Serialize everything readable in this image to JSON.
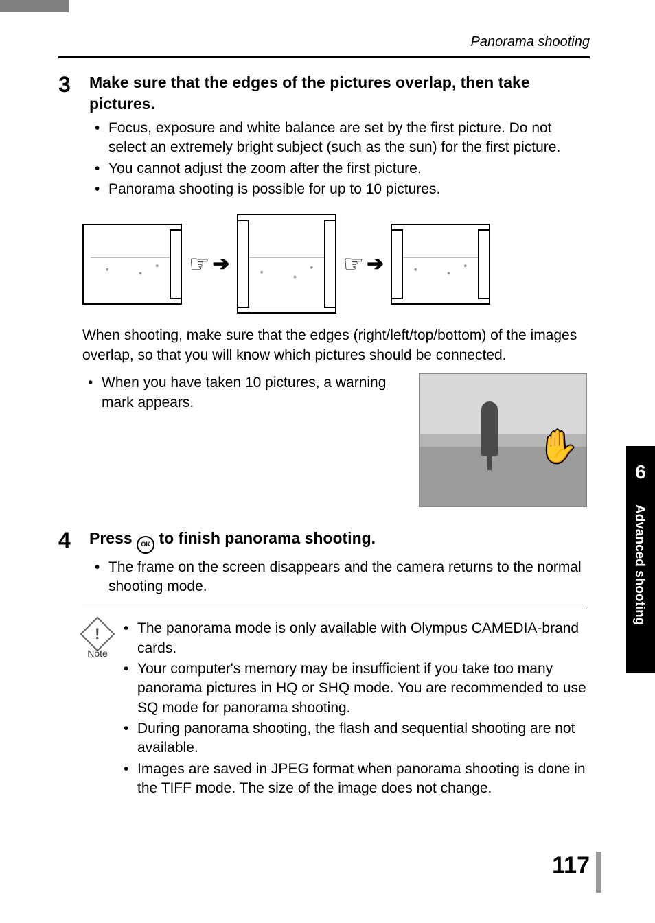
{
  "header": {
    "section_title": "Panorama shooting"
  },
  "step3": {
    "number": "3",
    "title": "Make sure that the edges of the pictures overlap, then take pictures.",
    "bullets": [
      "Focus, exposure and white balance are set by the first picture. Do not select an extremely bright subject (such as the sun) for the first picture.",
      "You cannot adjust the zoom after the first picture.",
      "Panorama shooting is possible for up to 10 pictures."
    ],
    "overlap_caption": "When shooting, make sure that the edges (right/left/top/bottom) of the images overlap, so that you will know which pictures should be connected.",
    "warning_bullets": [
      "When you have taken 10 pictures, a warning mark appears."
    ]
  },
  "step4": {
    "number": "4",
    "title_prefix": "Press ",
    "title_button": "OK",
    "title_suffix": " to finish panorama shooting.",
    "bullets": [
      "The frame on the screen disappears and the camera returns to the normal shooting mode."
    ]
  },
  "note": {
    "label": "Note",
    "mark": "!",
    "bullets": [
      "The panorama mode is only available with Olympus CAMEDIA-brand cards.",
      "Your computer's memory may be insufficient if you take too many panorama pictures in HQ or SHQ mode. You are recommended to use SQ mode for panorama shooting.",
      "During panorama shooting, the flash and sequential shooting are not available.",
      "Images are saved in JPEG format when panorama shooting is done in the TIFF mode. The size of the image does not change."
    ]
  },
  "side_tab": {
    "chapter": "6",
    "label": "Advanced shooting"
  },
  "page_number": "117",
  "icons": {
    "hand": "☞",
    "arrow": "➔",
    "warn_hand": "✋"
  }
}
